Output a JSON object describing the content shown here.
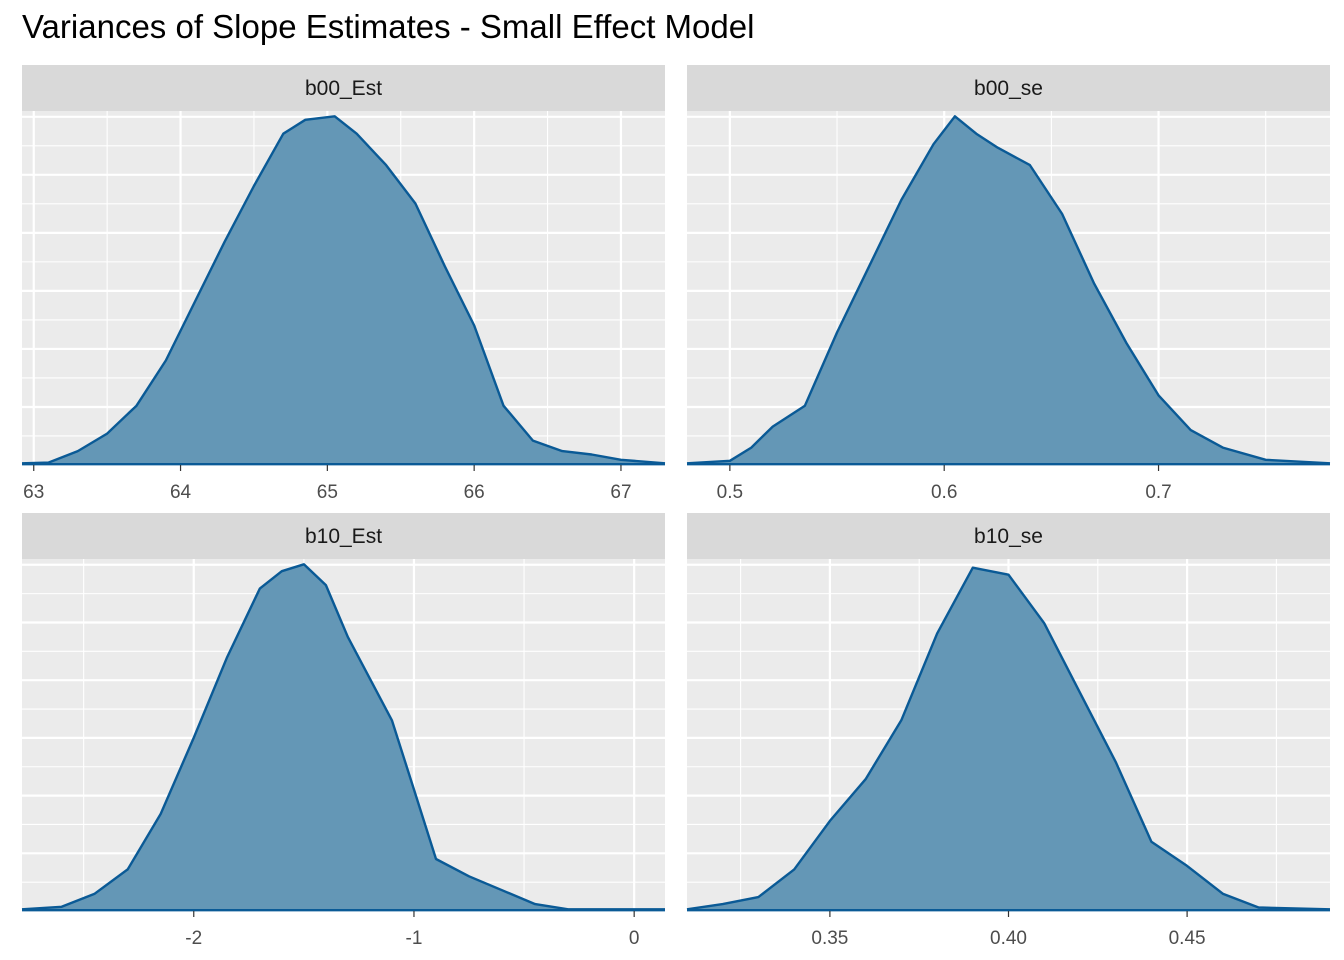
{
  "title": "Variances of Slope Estimates - Small Effect Model",
  "colors": {
    "panel_bg": "#EBEBEB",
    "strip_bg": "#D9D9D9",
    "grid": "#FFFFFF",
    "fill": "#6497B6",
    "line": "#0A5A96"
  },
  "chart_data": [
    {
      "type": "area",
      "subtype": "density",
      "facet": "b00_Est",
      "xlim": [
        62.92,
        67.3
      ],
      "ylim": [
        0,
        1
      ],
      "ticks": [
        63,
        64,
        65,
        66,
        67
      ],
      "tick_labels": [
        "63",
        "64",
        "65",
        "66",
        "67"
      ],
      "x": [
        62.92,
        63.1,
        63.3,
        63.5,
        63.7,
        63.9,
        64.1,
        64.3,
        64.5,
        64.7,
        64.85,
        65.05,
        65.2,
        65.4,
        65.6,
        65.8,
        66.0,
        66.2,
        66.4,
        66.6,
        66.8,
        67.0,
        67.3
      ],
      "y": [
        0.005,
        0.007,
        0.04,
        0.09,
        0.17,
        0.3,
        0.47,
        0.64,
        0.8,
        0.95,
        0.99,
        1.0,
        0.95,
        0.86,
        0.75,
        0.57,
        0.4,
        0.17,
        0.07,
        0.04,
        0.03,
        0.015,
        0.005
      ],
      "y_units": "relative density"
    },
    {
      "type": "area",
      "subtype": "density",
      "facet": "b00_se",
      "xlim": [
        0.48,
        0.78
      ],
      "ylim": [
        0,
        1
      ],
      "ticks": [
        0.5,
        0.6,
        0.7
      ],
      "tick_labels": [
        "0.5",
        "0.6",
        "0.7"
      ],
      "x": [
        0.48,
        0.5,
        0.51,
        0.52,
        0.535,
        0.55,
        0.565,
        0.58,
        0.595,
        0.605,
        0.615,
        0.625,
        0.64,
        0.655,
        0.67,
        0.685,
        0.7,
        0.715,
        0.73,
        0.75,
        0.78
      ],
      "y": [
        0.005,
        0.012,
        0.05,
        0.11,
        0.17,
        0.38,
        0.57,
        0.76,
        0.92,
        1.0,
        0.95,
        0.91,
        0.86,
        0.72,
        0.52,
        0.35,
        0.2,
        0.1,
        0.05,
        0.015,
        0.005
      ],
      "y_units": "relative density"
    },
    {
      "type": "area",
      "subtype": "density",
      "facet": "b10_Est",
      "xlim": [
        -2.78,
        0.14
      ],
      "ylim": [
        0,
        1
      ],
      "ticks": [
        -2,
        -1,
        0
      ],
      "tick_labels": [
        "-2",
        "-1",
        "0"
      ],
      "x": [
        -2.78,
        -2.6,
        -2.45,
        -2.3,
        -2.15,
        -2.0,
        -1.85,
        -1.7,
        -1.6,
        -1.5,
        -1.4,
        -1.3,
        -1.2,
        -1.1,
        -1.0,
        -0.9,
        -0.75,
        -0.6,
        -0.45,
        -0.3,
        -0.1,
        0.14
      ],
      "y": [
        0.005,
        0.012,
        0.05,
        0.12,
        0.28,
        0.5,
        0.73,
        0.93,
        0.98,
        1.0,
        0.94,
        0.79,
        0.67,
        0.55,
        0.35,
        0.15,
        0.1,
        0.06,
        0.02,
        0.005,
        0.005,
        0.005
      ],
      "y_units": "relative density"
    },
    {
      "type": "area",
      "subtype": "density",
      "facet": "b10_se",
      "xlim": [
        0.31,
        0.49
      ],
      "ylim": [
        0,
        1
      ],
      "ticks": [
        0.35,
        0.4,
        0.45
      ],
      "tick_labels": [
        "0.35",
        "0.40",
        "0.45"
      ],
      "x": [
        0.31,
        0.32,
        0.33,
        0.34,
        0.35,
        0.36,
        0.37,
        0.38,
        0.39,
        0.4,
        0.41,
        0.42,
        0.43,
        0.44,
        0.45,
        0.46,
        0.47,
        0.49
      ],
      "y": [
        0.005,
        0.02,
        0.04,
        0.12,
        0.26,
        0.38,
        0.55,
        0.8,
        0.99,
        0.97,
        0.83,
        0.63,
        0.43,
        0.2,
        0.13,
        0.05,
        0.01,
        0.005
      ],
      "y_units": "relative density"
    }
  ]
}
